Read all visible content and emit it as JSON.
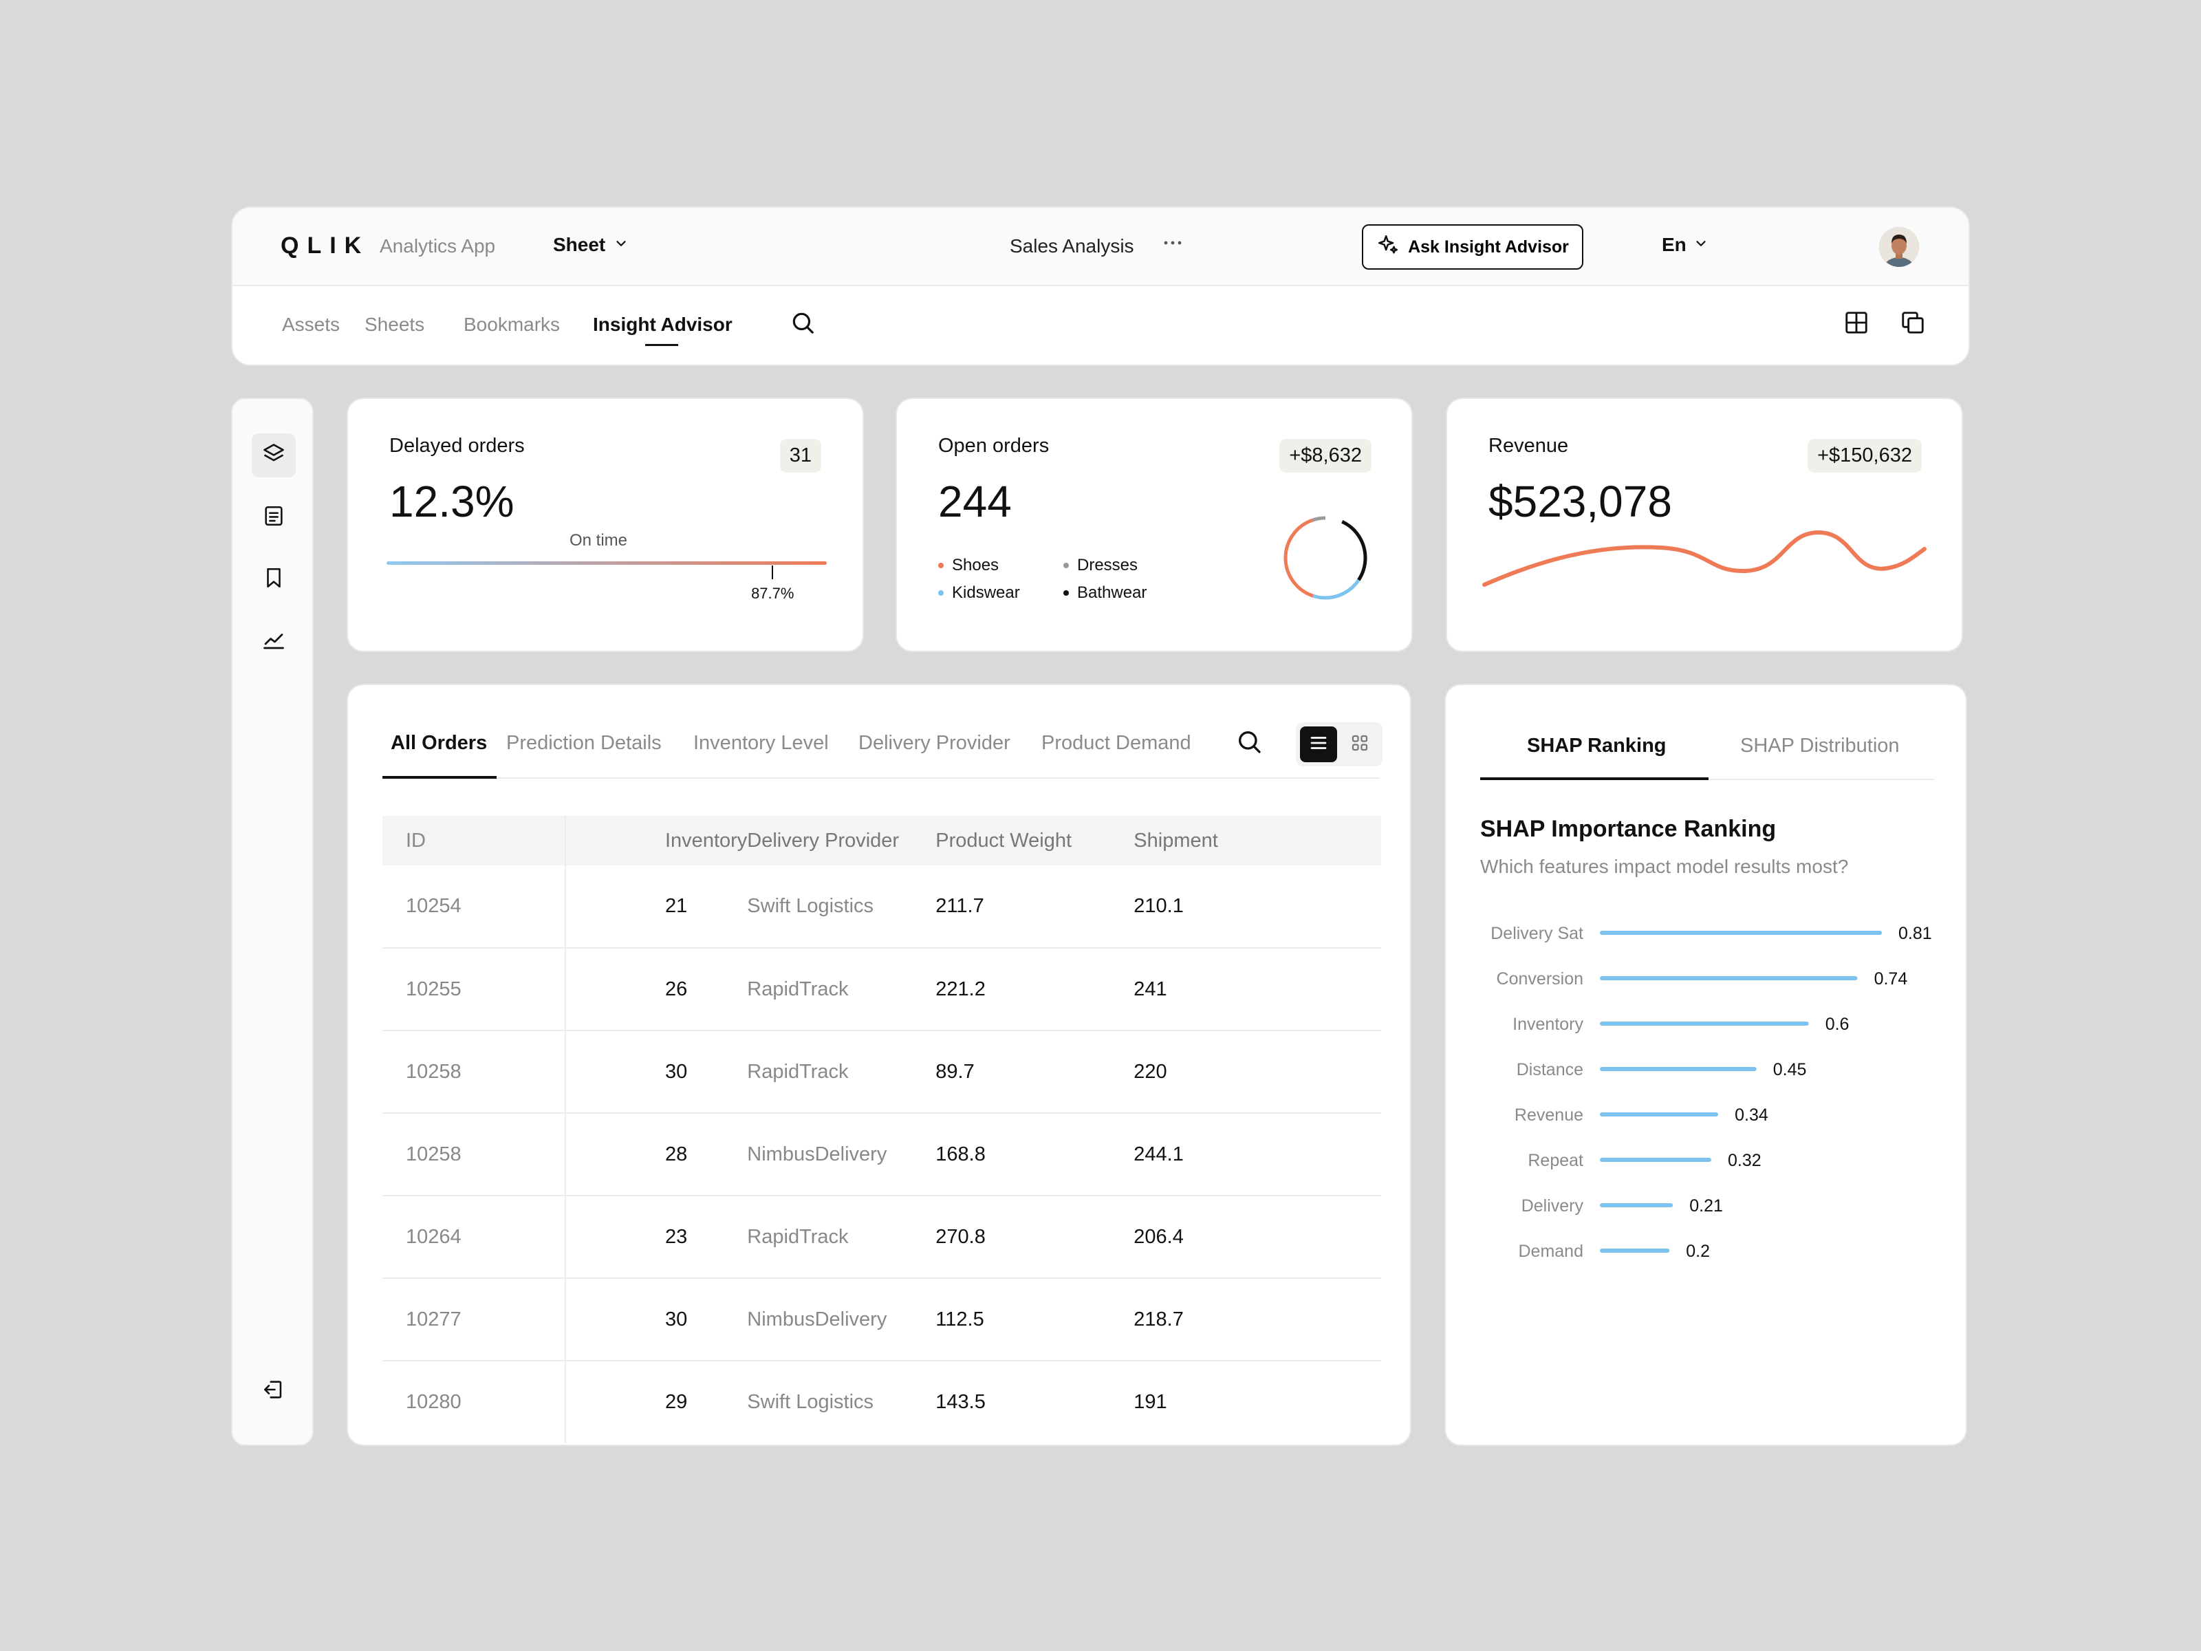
{
  "header": {
    "logo": "QLIK",
    "app_name": "Analytics App",
    "sheet_menu": "Sheet",
    "title": "Sales Analysis",
    "ask_button": "Ask Insight Advisor",
    "language": "En"
  },
  "nav": {
    "tabs": [
      {
        "label": "Assets",
        "active": false
      },
      {
        "label": "Sheets",
        "active": false
      },
      {
        "label": "Bookmarks",
        "active": false
      },
      {
        "label": "Insight Advisor",
        "active": true
      }
    ]
  },
  "sidebar": {
    "items": [
      {
        "icon": "layers-icon",
        "active": true
      },
      {
        "icon": "document-icon",
        "active": false
      },
      {
        "icon": "bookmark-icon",
        "active": false
      },
      {
        "icon": "chart-line-icon",
        "active": false
      }
    ],
    "bottom_icon": "logout-icon"
  },
  "kpis": {
    "delayed": {
      "title": "Delayed orders",
      "value": "12.3%",
      "badge": "31",
      "bar_label": "On time",
      "marker_label": "87.7%",
      "on_time_fraction": 0.877,
      "bar_colors": [
        "#8ec8f2",
        "#ef7a56"
      ]
    },
    "open": {
      "title": "Open orders",
      "value": "244",
      "badge": "+$8,632",
      "legend": [
        {
          "label": "Shoes",
          "color": "#ef7a56"
        },
        {
          "label": "Dresses",
          "color": "#9a9a9a"
        },
        {
          "label": "Kidswear",
          "color": "#7cc3ef"
        },
        {
          "label": "Bathwear",
          "color": "#111111"
        }
      ]
    },
    "revenue": {
      "title": "Revenue",
      "value": "$523,078",
      "badge": "+$150,632",
      "line_color": "#ef7a56"
    }
  },
  "orders": {
    "tabs": [
      {
        "label": "All Orders",
        "active": true
      },
      {
        "label": "Prediction Details",
        "active": false
      },
      {
        "label": "Inventory Level",
        "active": false
      },
      {
        "label": "Delivery Provider",
        "active": false
      },
      {
        "label": "Product Demand",
        "active": false
      }
    ],
    "columns": [
      "ID",
      "Inventory",
      "Delivery Provider",
      "Product Weight",
      "Shipment"
    ],
    "rows": [
      [
        "10254",
        "21",
        "Swift Logistics",
        "211.7",
        "210.1"
      ],
      [
        "10255",
        "26",
        "RapidTrack",
        "221.2",
        "241"
      ],
      [
        "10258",
        "30",
        "RapidTrack",
        "89.7",
        "220"
      ],
      [
        "10258",
        "28",
        "NimbusDelivery",
        "168.8",
        "244.1"
      ],
      [
        "10264",
        "23",
        "RapidTrack",
        "270.8",
        "206.4"
      ],
      [
        "10277",
        "30",
        "NimbusDelivery",
        "112.5",
        "218.7"
      ],
      [
        "10280",
        "29",
        "Swift Logistics",
        "143.5",
        "191"
      ]
    ]
  },
  "shap": {
    "tabs": [
      {
        "label": "SHAP Ranking",
        "active": true
      },
      {
        "label": "SHAP Distribution",
        "active": false
      }
    ],
    "title": "SHAP Importance Ranking",
    "subtitle": "Which features impact model results most?",
    "bar_color": "#7cc3ef"
  },
  "chart_data": {
    "type": "bar",
    "orientation": "horizontal",
    "categories": [
      "Delivery Sat",
      "Conversion",
      "Inventory",
      "Distance",
      "Revenue",
      "Repeat",
      "Delivery",
      "Demand"
    ],
    "values": [
      0.81,
      0.74,
      0.6,
      0.45,
      0.34,
      0.32,
      0.21,
      0.2
    ]
  }
}
